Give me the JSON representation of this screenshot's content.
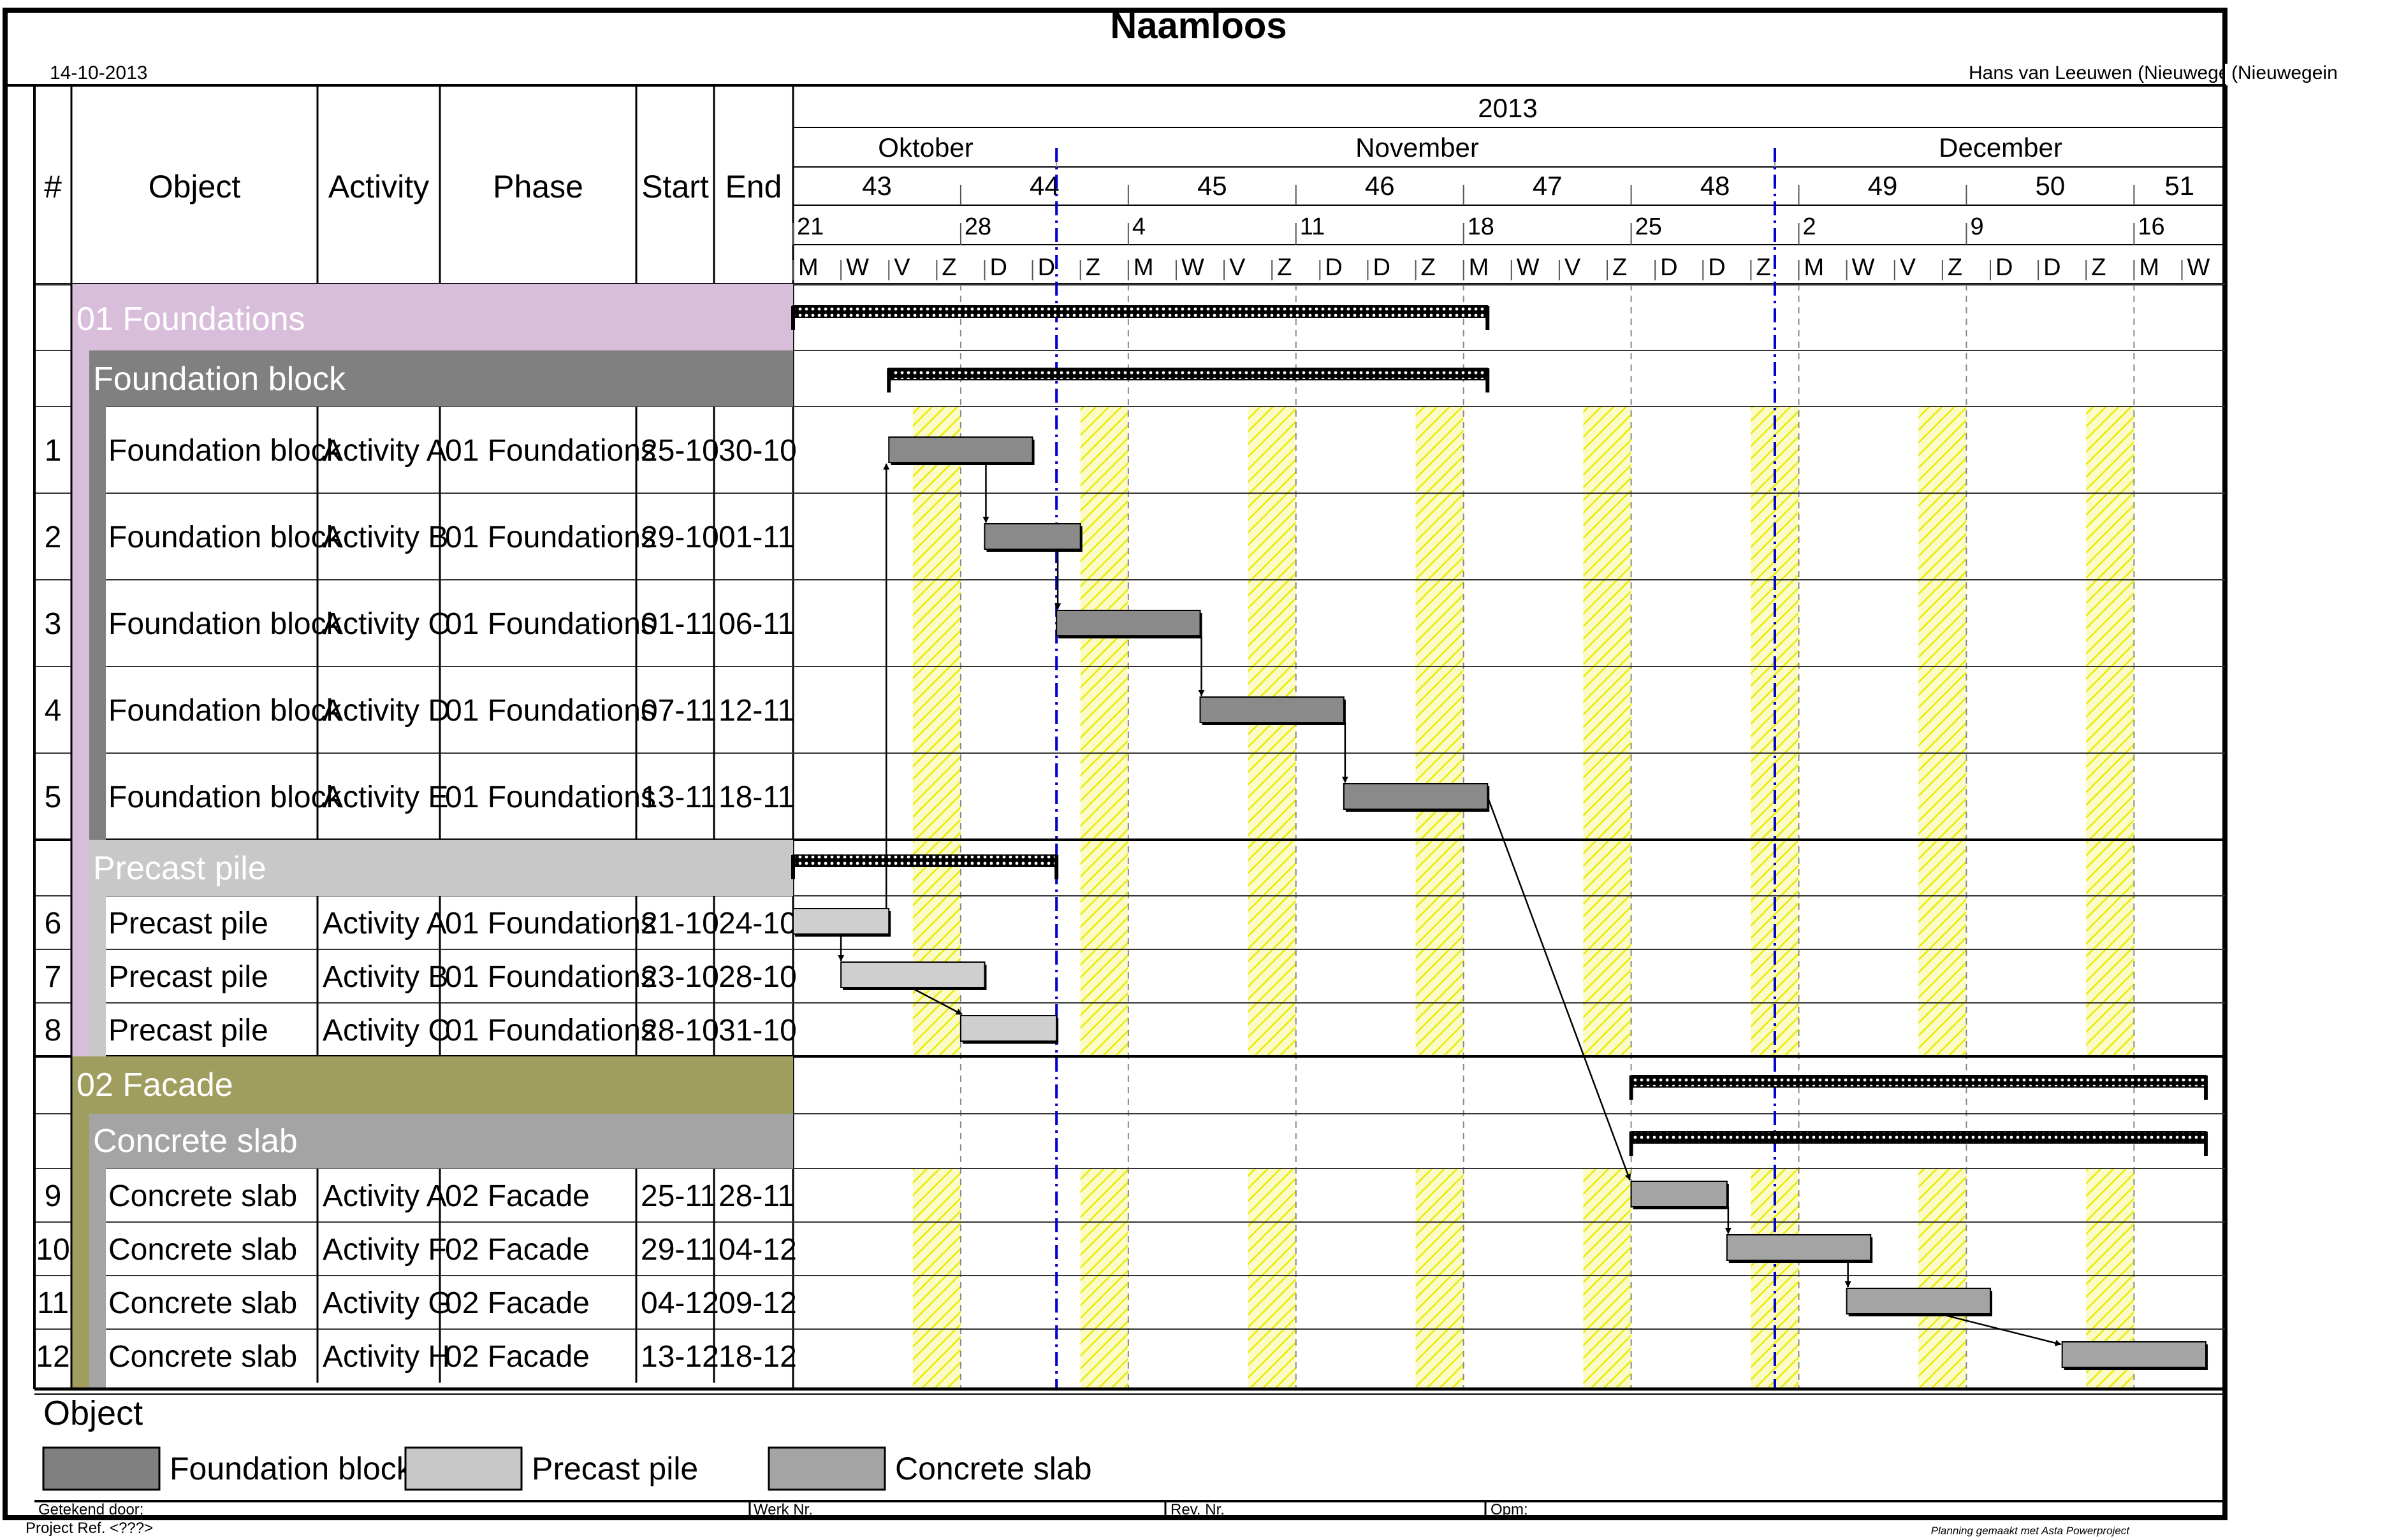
{
  "header": {
    "title": "Naamloos",
    "date": "14-10-2013",
    "author": "Hans van Leeuwen (Nieuwegein"
  },
  "columns": [
    "#",
    "Object",
    "Activity",
    "Phase",
    "Start",
    "End"
  ],
  "timescale": {
    "year": "2013",
    "months": [
      "Oktober",
      "November",
      "December"
    ],
    "weeks": [
      "43",
      "44",
      "45",
      "46",
      "47",
      "48",
      "49",
      "50",
      "51"
    ],
    "week_start_dates": [
      "21",
      "28",
      "4",
      "11",
      "18",
      "25",
      "2",
      "9",
      "16"
    ],
    "day_letters": [
      "M",
      "W",
      "V",
      "Z",
      "D",
      "D",
      "Z",
      "M",
      "W",
      "V",
      "Z",
      "D",
      "D",
      "Z",
      "M",
      "W",
      "V",
      "Z",
      "D",
      "D",
      "Z",
      "M",
      "W",
      "V",
      "Z",
      "D",
      "D",
      "Z",
      "M",
      "W"
    ]
  },
  "groups": {
    "foundations": "01 Foundations",
    "foundation_block": "Foundation block",
    "precast_pile": "Precast pile",
    "facade": "02 Facade",
    "concrete_slab": "Concrete slab"
  },
  "rows": [
    {
      "id": "1",
      "object": "Foundation block",
      "activity": "Activity A",
      "phase": "01 Foundations",
      "start": "25-10",
      "end": "30-10"
    },
    {
      "id": "2",
      "object": "Foundation block",
      "activity": "Activity B",
      "phase": "01 Foundations",
      "start": "29-10",
      "end": "01-11"
    },
    {
      "id": "3",
      "object": "Foundation block",
      "activity": "Activity C",
      "phase": "01 Foundations",
      "start": "01-11",
      "end": "06-11"
    },
    {
      "id": "4",
      "object": "Foundation block",
      "activity": "Activity D",
      "phase": "01 Foundations",
      "start": "07-11",
      "end": "12-11"
    },
    {
      "id": "5",
      "object": "Foundation block",
      "activity": "Activity E",
      "phase": "01 Foundations",
      "start": "13-11",
      "end": "18-11"
    },
    {
      "id": "6",
      "object": "Precast pile",
      "activity": "Activity A",
      "phase": "01 Foundations",
      "start": "21-10",
      "end": "24-10"
    },
    {
      "id": "7",
      "object": "Precast pile",
      "activity": "Activity B",
      "phase": "01 Foundations",
      "start": "23-10",
      "end": "28-10"
    },
    {
      "id": "8",
      "object": "Precast pile",
      "activity": "Activity C",
      "phase": "01 Foundations",
      "start": "28-10",
      "end": "31-10"
    },
    {
      "id": "9",
      "object": "Concrete slab",
      "activity": "Activity A",
      "phase": "02 Facade",
      "start": "25-11",
      "end": "28-11"
    },
    {
      "id": "10",
      "object": "Concrete slab",
      "activity": "Activity F",
      "phase": "02 Facade",
      "start": "29-11",
      "end": "04-12"
    },
    {
      "id": "11",
      "object": "Concrete slab",
      "activity": "Activity G",
      "phase": "02 Facade",
      "start": "04-12",
      "end": "09-12"
    },
    {
      "id": "12",
      "object": "Concrete slab",
      "activity": "Activity H",
      "phase": "02 Facade",
      "start": "13-12",
      "end": "18-12"
    }
  ],
  "chart_data": {
    "type": "gantt",
    "year": 2013,
    "x_range": [
      "2013-10-21",
      "2013-12-18"
    ],
    "tasks": [
      {
        "id": "1",
        "object": "Foundation block",
        "activity": "Activity A",
        "start": "2013-10-25",
        "end": "2013-10-30"
      },
      {
        "id": "2",
        "object": "Foundation block",
        "activity": "Activity B",
        "start": "2013-10-29",
        "end": "2013-11-01"
      },
      {
        "id": "3",
        "object": "Foundation block",
        "activity": "Activity C",
        "start": "2013-11-01",
        "end": "2013-11-06"
      },
      {
        "id": "4",
        "object": "Foundation block",
        "activity": "Activity D",
        "start": "2013-11-07",
        "end": "2013-11-12"
      },
      {
        "id": "5",
        "object": "Foundation block",
        "activity": "Activity E",
        "start": "2013-11-13",
        "end": "2013-11-18"
      },
      {
        "id": "6",
        "object": "Precast pile",
        "activity": "Activity A",
        "start": "2013-10-21",
        "end": "2013-10-24"
      },
      {
        "id": "7",
        "object": "Precast pile",
        "activity": "Activity B",
        "start": "2013-10-23",
        "end": "2013-10-28"
      },
      {
        "id": "8",
        "object": "Precast pile",
        "activity": "Activity C",
        "start": "2013-10-28",
        "end": "2013-10-31"
      },
      {
        "id": "9",
        "object": "Concrete slab",
        "activity": "Activity A",
        "start": "2013-11-25",
        "end": "2013-11-28"
      },
      {
        "id": "10",
        "object": "Concrete slab",
        "activity": "Activity F",
        "start": "2013-11-29",
        "end": "2013-12-04"
      },
      {
        "id": "11",
        "object": "Concrete slab",
        "activity": "Activity G",
        "start": "2013-12-04",
        "end": "2013-12-09"
      },
      {
        "id": "12",
        "object": "Concrete slab",
        "activity": "Activity H",
        "start": "2013-12-13",
        "end": "2013-12-18"
      }
    ],
    "summaries": [
      {
        "label": "01 Foundations",
        "start": "2013-10-21",
        "end": "2013-11-18"
      },
      {
        "label": "Foundation block",
        "start": "2013-10-25",
        "end": "2013-11-18"
      },
      {
        "label": "Precast pile",
        "start": "2013-10-21",
        "end": "2013-10-31"
      },
      {
        "label": "02 Facade",
        "start": "2013-11-25",
        "end": "2013-12-18"
      },
      {
        "label": "Concrete slab",
        "start": "2013-11-25",
        "end": "2013-12-18"
      }
    ],
    "links": [
      [
        "6",
        "1"
      ],
      [
        "1",
        "2"
      ],
      [
        "2",
        "3"
      ],
      [
        "3",
        "4"
      ],
      [
        "4",
        "5"
      ],
      [
        "6",
        "7"
      ],
      [
        "7",
        "8"
      ],
      [
        "5",
        "9"
      ],
      [
        "9",
        "10"
      ],
      [
        "10",
        "11"
      ],
      [
        "11",
        "12"
      ]
    ],
    "markers": [
      "2013-10-31",
      "2013-11-30"
    ],
    "colors": {
      "foundations": "#d9bedb",
      "foundation_block": "#808080",
      "precast_pile": "#c8c8c8",
      "facade": "#a09e5e",
      "concrete_slab": "#a4a4a4",
      "weekend": "#f2f200",
      "marker": "#0000cc"
    }
  },
  "legend": {
    "title": "Object",
    "items": [
      {
        "label": "Foundation block",
        "color": "#808080"
      },
      {
        "label": "Precast pile",
        "color": "#c8c8c8"
      },
      {
        "label": "Concrete slab",
        "color": "#a4a4a4"
      }
    ]
  },
  "footer": {
    "drawn_by": "Getekend door:",
    "work_nr": "Werk Nr.",
    "rev_nr": "Rev. Nr.",
    "remarks": "Opm:",
    "project_ref": "Project Ref. <???>",
    "credit": "Planning gemaakt met Asta Powerproject"
  }
}
